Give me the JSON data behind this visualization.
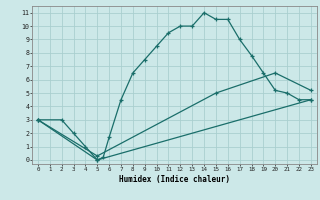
{
  "xlabel": "Humidex (Indice chaleur)",
  "bg_color": "#cce8e8",
  "grid_color": "#aacfcf",
  "line_color": "#1a6e6a",
  "xlim": [
    -0.5,
    23.5
  ],
  "ylim": [
    -0.3,
    11.5
  ],
  "xticks": [
    0,
    1,
    2,
    3,
    4,
    5,
    6,
    7,
    8,
    9,
    10,
    11,
    12,
    13,
    14,
    15,
    16,
    17,
    18,
    19,
    20,
    21,
    22,
    23
  ],
  "yticks": [
    0,
    1,
    2,
    3,
    4,
    5,
    6,
    7,
    8,
    9,
    10,
    11
  ],
  "line1_x": [
    0,
    2,
    3,
    4,
    5,
    5.5,
    6,
    7,
    8,
    9,
    10,
    11,
    12,
    13,
    14,
    15,
    16,
    17,
    18,
    19,
    20,
    21,
    22,
    23
  ],
  "line1_y": [
    3,
    3,
    2,
    1,
    0,
    0.2,
    1.7,
    4.5,
    6.5,
    7.5,
    8.5,
    9.5,
    10,
    10,
    11,
    10.5,
    10.5,
    9,
    7.8,
    6.5,
    5.2,
    5,
    4.5,
    4.5
  ],
  "line2_x": [
    0,
    5,
    23
  ],
  "line2_y": [
    3,
    0,
    4.5
  ],
  "line3_x": [
    0,
    5,
    15,
    20,
    23
  ],
  "line3_y": [
    3,
    0.3,
    5,
    6.5,
    5.2
  ]
}
